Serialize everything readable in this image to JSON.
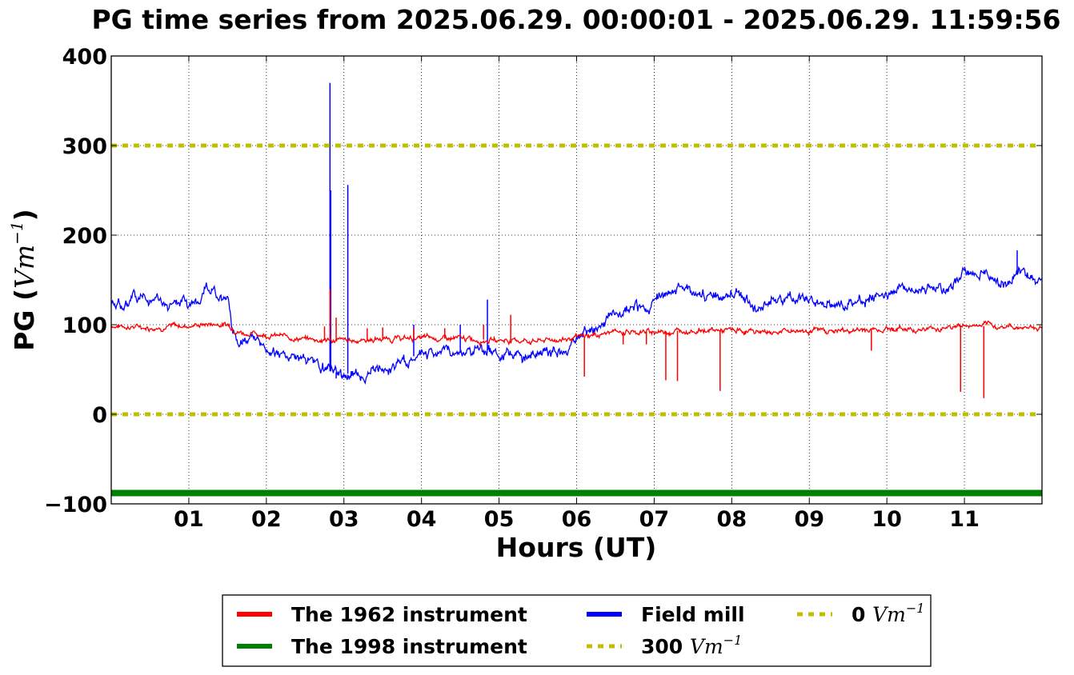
{
  "chart_data": {
    "type": "line",
    "title": "PG time series from 2025.06.29. 00:00:01 - 2025.06.29. 11:59:56",
    "xlabel": "Hours (UT)",
    "ylabel": {
      "prefix": "PG (",
      "unit": "Vm",
      "exp": "−1",
      "suffix": ")"
    },
    "xlim": [
      0,
      12
    ],
    "ylim": [
      -100,
      400
    ],
    "xticks": [
      1,
      2,
      3,
      4,
      5,
      6,
      7,
      8,
      9,
      10,
      11
    ],
    "xtick_labels": [
      "01",
      "02",
      "03",
      "04",
      "05",
      "06",
      "07",
      "08",
      "09",
      "10",
      "11"
    ],
    "yticks": [
      -100,
      0,
      100,
      200,
      300,
      400
    ],
    "ytick_labels": [
      "−100",
      "0",
      "100",
      "200",
      "300",
      "400"
    ],
    "grid": true,
    "legend_position": "below",
    "series": [
      {
        "name": "The 1962 instrument",
        "color": "#ff0000",
        "noise": 3,
        "x": [
          0,
          0.5,
          1.0,
          1.3,
          1.5,
          1.7,
          2.0,
          2.5,
          3.0,
          3.5,
          4.0,
          4.5,
          5.0,
          5.5,
          6.0,
          6.2,
          6.5,
          7.0,
          7.5,
          8.0,
          8.5,
          9.0,
          9.5,
          10.0,
          10.5,
          11.0,
          11.5,
          12.0
        ],
        "y": [
          99,
          97,
          99,
          101,
          100,
          91,
          89,
          84,
          82,
          84,
          85,
          84,
          83,
          82,
          85,
          88,
          92,
          92,
          94,
          93,
          92,
          94,
          93,
          96,
          95,
          99,
          98,
          97
        ],
        "spikes": [
          {
            "x": 2.75,
            "y": 98
          },
          {
            "x": 2.82,
            "y": 140
          },
          {
            "x": 2.9,
            "y": 108
          },
          {
            "x": 3.3,
            "y": 96
          },
          {
            "x": 3.5,
            "y": 97
          },
          {
            "x": 3.9,
            "y": 96
          },
          {
            "x": 4.3,
            "y": 96
          },
          {
            "x": 4.8,
            "y": 100
          },
          {
            "x": 5.15,
            "y": 111
          },
          {
            "x": 6.1,
            "y": 42
          },
          {
            "x": 6.6,
            "y": 78
          },
          {
            "x": 6.9,
            "y": 78
          },
          {
            "x": 7.15,
            "y": 38
          },
          {
            "x": 7.3,
            "y": 37
          },
          {
            "x": 7.85,
            "y": 26
          },
          {
            "x": 9.8,
            "y": 71
          },
          {
            "x": 10.95,
            "y": 25
          },
          {
            "x": 11.25,
            "y": 18
          }
        ]
      },
      {
        "name": "The 1998 instrument",
        "color": "#008000",
        "noise": 0,
        "x": [
          0,
          12
        ],
        "y": [
          -88,
          -88
        ],
        "spikes": []
      },
      {
        "name": "Field mill",
        "color": "#0000ff",
        "noise": 6,
        "x": [
          0,
          0.15,
          0.3,
          0.5,
          0.7,
          0.9,
          1.0,
          1.2,
          1.5,
          1.55,
          1.65,
          1.8,
          2.0,
          2.2,
          2.5,
          2.7,
          3.0,
          3.3,
          3.6,
          3.7,
          4.0,
          4.4,
          4.8,
          5.0,
          5.4,
          5.8,
          6.0,
          6.3,
          6.5,
          6.8,
          7.0,
          7.4,
          7.7,
          8.0,
          8.3,
          8.6,
          9.0,
          9.3,
          9.6,
          10.0,
          10.3,
          10.6,
          10.8,
          11.0,
          11.3,
          11.5,
          11.7,
          12.0
        ],
        "y": [
          130,
          118,
          130,
          128,
          125,
          130,
          122,
          138,
          132,
          100,
          82,
          86,
          75,
          68,
          60,
          50,
          45,
          47,
          50,
          58,
          68,
          70,
          73,
          68,
          65,
          68,
          82,
          98,
          110,
          118,
          125,
          145,
          128,
          138,
          122,
          125,
          130,
          122,
          125,
          138,
          142,
          140,
          135,
          158,
          155,
          145,
          160,
          150
        ],
        "spikes": [
          {
            "x": 2.82,
            "y": 370
          },
          {
            "x": 2.83,
            "y": 250
          },
          {
            "x": 3.05,
            "y": 256
          },
          {
            "x": 2.9,
            "y": 40
          },
          {
            "x": 4.85,
            "y": 128
          },
          {
            "x": 4.5,
            "y": 100
          },
          {
            "x": 3.9,
            "y": 100
          },
          {
            "x": 11.68,
            "y": 183
          }
        ]
      },
      {
        "name": "300",
        "unit": "Vm",
        "exp": "−1",
        "color": "#bfbf00",
        "dashed": true,
        "x": [
          0,
          12
        ],
        "y": [
          300,
          300
        ]
      },
      {
        "name": "0",
        "unit": "Vm",
        "exp": "−1",
        "color": "#bfbf00",
        "dashed": true,
        "x": [
          0,
          12
        ],
        "y": [
          0,
          0
        ]
      }
    ]
  }
}
